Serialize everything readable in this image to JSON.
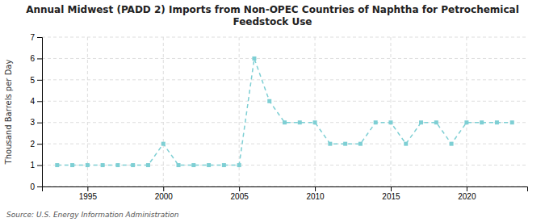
{
  "chart_data": {
    "type": "line",
    "title": "Annual Midwest (PADD 2) Imports from Non-OPEC Countries of Naphtha for Petrochemical\nFeedstock Use",
    "ylabel": "Thousand Barrels per Day",
    "source": "Source: U.S. Energy Information Administration",
    "x": [
      1993,
      1994,
      1995,
      1996,
      1997,
      1998,
      1999,
      2000,
      2001,
      2002,
      2003,
      2004,
      2005,
      2006,
      2007,
      2008,
      2009,
      2010,
      2011,
      2012,
      2013,
      2014,
      2015,
      2016,
      2017,
      2018,
      2019,
      2020,
      2021,
      2022,
      2023
    ],
    "values": [
      1,
      1,
      1,
      1,
      1,
      1,
      1,
      2,
      1,
      1,
      1,
      1,
      1,
      6,
      4,
      3,
      3,
      3,
      2,
      2,
      2,
      3,
      3,
      2,
      3,
      3,
      2,
      3,
      3,
      3,
      3
    ],
    "color": "#7ecfd4",
    "marker": "square",
    "line_style": "dashed",
    "xlim": [
      1992,
      2024
    ],
    "xticks": [
      1995,
      2000,
      2005,
      2010,
      2015,
      2020
    ],
    "ylim": [
      0,
      7
    ],
    "yticks": [
      0,
      1,
      2,
      3,
      4,
      5,
      6,
      7
    ],
    "grid": true
  }
}
